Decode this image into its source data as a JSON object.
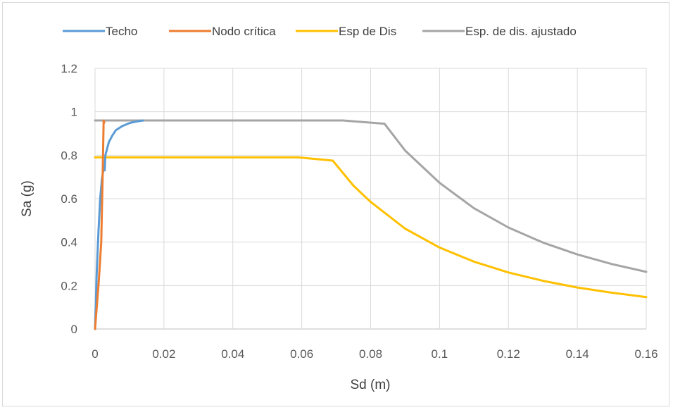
{
  "chart_data": {
    "type": "line",
    "title": "",
    "xlabel": "Sd (m)",
    "ylabel": "Sa (g)",
    "xlim": [
      0,
      0.16
    ],
    "ylim": [
      0,
      1.2
    ],
    "xticks": [
      0,
      0.02,
      0.04,
      0.06,
      0.08,
      0.1,
      0.12,
      0.14,
      0.16
    ],
    "xtick_labels": [
      "0",
      "0.02",
      "0.04",
      "0.06",
      "0.08",
      "0.1",
      "0.12",
      "0.14",
      "0.16"
    ],
    "yticks": [
      0,
      0.2,
      0.4,
      0.6,
      0.8,
      1,
      1.2
    ],
    "ytick_labels": [
      "0",
      "0.2",
      "0.4",
      "0.6",
      "0.8",
      "1",
      "1.2"
    ],
    "grid": true,
    "legend_position": "top",
    "series": [
      {
        "name": "Techo",
        "color": "#5b9bd5",
        "x": [
          0,
          0.0005,
          0.001,
          0.0015,
          0.002,
          0.0025,
          0.0028,
          0.003,
          0.0035,
          0.004,
          0.005,
          0.006,
          0.008,
          0.01,
          0.012,
          0.014
        ],
        "y": [
          0,
          0.26,
          0.45,
          0.6,
          0.69,
          0.74,
          0.73,
          0.8,
          0.83,
          0.86,
          0.89,
          0.915,
          0.935,
          0.948,
          0.955,
          0.96
        ]
      },
      {
        "name": "Nodo crítica",
        "color": "#ed7d31",
        "x": [
          0,
          0.0005,
          0.001,
          0.0015,
          0.0018,
          0.002,
          0.0022,
          0.0025,
          0.0027
        ],
        "y": [
          0,
          0.1,
          0.2,
          0.32,
          0.4,
          0.55,
          0.7,
          0.96,
          0.95
        ]
      },
      {
        "name": "Esp de Dis",
        "color": "#ffc000",
        "x": [
          0,
          0.059,
          0.069,
          0.075,
          0.08,
          0.09,
          0.1,
          0.11,
          0.12,
          0.13,
          0.14,
          0.15,
          0.16
        ],
        "y": [
          0.79,
          0.79,
          0.775,
          0.66,
          0.585,
          0.462,
          0.375,
          0.31,
          0.26,
          0.222,
          0.191,
          0.167,
          0.147
        ]
      },
      {
        "name": "Esp. de dis. ajustado",
        "color": "#a5a5a5",
        "x": [
          0,
          0.072,
          0.084,
          0.09,
          0.1,
          0.11,
          0.12,
          0.13,
          0.14,
          0.15,
          0.16
        ],
        "y": [
          0.96,
          0.96,
          0.945,
          0.822,
          0.673,
          0.556,
          0.467,
          0.398,
          0.343,
          0.299,
          0.263
        ]
      }
    ]
  }
}
